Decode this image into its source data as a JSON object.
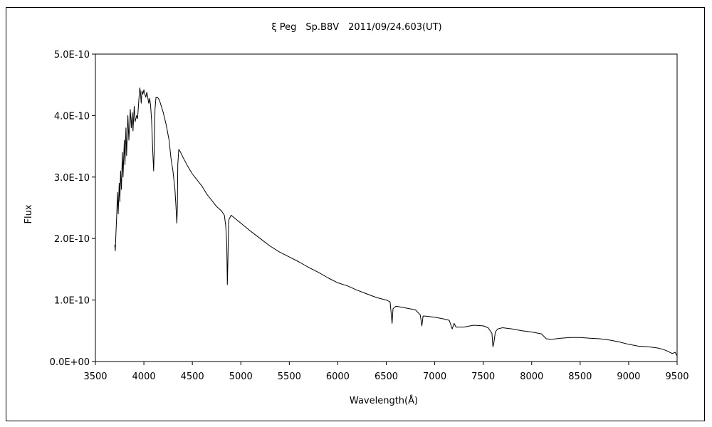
{
  "chart_data": {
    "type": "line",
    "title": "ξ Peg　Sp.B8V　2011/09/24.603(UT)",
    "xlabel": "Wavelength(Å)",
    "ylabel": "Flux",
    "xlim": [
      3500,
      9500
    ],
    "ylim": [
      0,
      5e-10
    ],
    "x_ticks": [
      3500,
      4000,
      4500,
      5000,
      5500,
      6000,
      6500,
      7000,
      7500,
      8000,
      8500,
      9000,
      9500
    ],
    "x_tick_labels": [
      "3500",
      "4000",
      "4500",
      "5000",
      "5500",
      "6000",
      "6500",
      "7000",
      "7500",
      "8000",
      "8500",
      "9000",
      "9500"
    ],
    "y_ticks": [
      0,
      1e-10,
      2e-10,
      3e-10,
      4e-10,
      5e-10
    ],
    "y_tick_labels": [
      "0.0E+00",
      "1.0E-10",
      "2.0E-10",
      "3.0E-10",
      "4.0E-10",
      "5.0E-10"
    ],
    "grid": false,
    "series": [
      {
        "color": "#000000",
        "x": [
          3700,
          3705,
          3712,
          3720,
          3728,
          3735,
          3745,
          3752,
          3760,
          3768,
          3778,
          3785,
          3798,
          3805,
          3815,
          3822,
          3835,
          3845,
          3860,
          3870,
          3880,
          3888,
          3900,
          3910,
          3925,
          3935,
          3950,
          3958,
          3965,
          3972,
          3980,
          3990,
          4000,
          4010,
          4020,
          4030,
          4040,
          4050,
          4060,
          4070,
          4080,
          4090,
          4095,
          4101,
          4106,
          4115,
          4125,
          4140,
          4160,
          4180,
          4200,
          4230,
          4260,
          4280,
          4300,
          4320,
          4330,
          4335,
          4340,
          4345,
          4350,
          4360,
          4380,
          4400,
          4450,
          4500,
          4550,
          4600,
          4650,
          4700,
          4750,
          4800,
          4830,
          4845,
          4855,
          4861,
          4866,
          4875,
          4900,
          5000,
          5100,
          5200,
          5300,
          5400,
          5500,
          5600,
          5700,
          5800,
          5900,
          6000,
          6100,
          6200,
          6300,
          6400,
          6500,
          6540,
          6560,
          6570,
          6600,
          6700,
          6800,
          6850,
          6867,
          6880,
          6900,
          7000,
          7100,
          7150,
          7180,
          7200,
          7220,
          7300,
          7400,
          7500,
          7550,
          7590,
          7600,
          7610,
          7625,
          7650,
          7700,
          7800,
          7900,
          8000,
          8100,
          8150,
          8200,
          8300,
          8400,
          8500,
          8600,
          8700,
          8800,
          8900,
          9000,
          9100,
          9200,
          9300,
          9350,
          9400,
          9450,
          9480,
          9500
        ],
        "y": [
          1.9e-10,
          1.8e-10,
          2.1e-10,
          2.4e-10,
          2.75e-10,
          2.4e-10,
          2.9e-10,
          2.6e-10,
          3.1e-10,
          2.8e-10,
          3.4e-10,
          3e-10,
          3.6e-10,
          3.2e-10,
          3.8e-10,
          3.35e-10,
          4e-10,
          3.6e-10,
          4.1e-10,
          3.8e-10,
          4.05e-10,
          3.75e-10,
          4.15e-10,
          3.9e-10,
          4e-10,
          3.95e-10,
          4.3e-10,
          4.45e-10,
          4.38e-10,
          4.2e-10,
          4.4e-10,
          4.35e-10,
          4.42e-10,
          4.35e-10,
          4.3e-10,
          4.38e-10,
          4.3e-10,
          4.2e-10,
          4.28e-10,
          4.15e-10,
          3.9e-10,
          3.5e-10,
          3.3e-10,
          3.1e-10,
          3.4e-10,
          4.1e-10,
          4.3e-10,
          4.3e-10,
          4.25e-10,
          4.15e-10,
          4.05e-10,
          3.85e-10,
          3.6e-10,
          3.3e-10,
          3.1e-10,
          2.8e-10,
          2.55e-10,
          2.4e-10,
          2.25e-10,
          2.5e-10,
          3.2e-10,
          3.45e-10,
          3.4e-10,
          3.33e-10,
          3.18e-10,
          3.05e-10,
          2.95e-10,
          2.85e-10,
          2.72e-10,
          2.62e-10,
          2.52e-10,
          2.45e-10,
          2.38e-10,
          2.2e-10,
          1.9e-10,
          1.25e-10,
          1.6e-10,
          2.3e-10,
          2.38e-10,
          2.25e-10,
          2.12e-10,
          2e-10,
          1.88e-10,
          1.78e-10,
          1.7e-10,
          1.62e-10,
          1.53e-10,
          1.45e-10,
          1.36e-10,
          1.28e-10,
          1.23e-10,
          1.16e-10,
          1.1e-10,
          1.04e-10,
          1e-10,
          9.7e-11,
          6.2e-11,
          8.6e-11,
          9e-11,
          8.7e-11,
          8.4e-11,
          7.6e-11,
          5.8e-11,
          7.4e-11,
          7.4e-11,
          7.2e-11,
          6.9e-11,
          6.7e-11,
          5.3e-11,
          6.2e-11,
          5.6e-11,
          5.6e-11,
          5.9e-11,
          5.8e-11,
          5.5e-11,
          4.6e-11,
          2.4e-11,
          3e-11,
          4.8e-11,
          5.3e-11,
          5.5e-11,
          5.3e-11,
          5e-11,
          4.8e-11,
          4.5e-11,
          3.7e-11,
          3.6e-11,
          3.8e-11,
          3.9e-11,
          3.9e-11,
          3.8e-11,
          3.7e-11,
          3.5e-11,
          3.2e-11,
          2.8e-11,
          2.5e-11,
          2.4e-11,
          2.2e-11,
          2e-11,
          1.7e-11,
          1.3e-11,
          1.5e-11,
          9e-12
        ]
      }
    ]
  }
}
